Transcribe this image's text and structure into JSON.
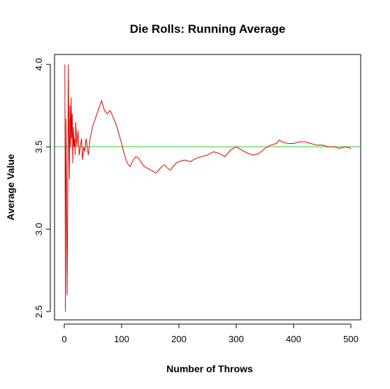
{
  "chart_data": {
    "type": "line",
    "title": "Die Rolls: Running Average",
    "xlabel": "Number of Throws",
    "ylabel": "Average Value",
    "xlim": [
      -17,
      517
    ],
    "ylim": [
      2.45,
      4.06
    ],
    "x_ticks": [
      0,
      100,
      200,
      300,
      400,
      500
    ],
    "x_tick_labels": [
      "0",
      "100",
      "200",
      "300",
      "400",
      "500"
    ],
    "y_ticks": [
      2.5,
      3.0,
      3.5,
      4.0
    ],
    "y_tick_labels": [
      "2.5",
      "3.0",
      "3.5",
      "4.0"
    ],
    "grid": false,
    "colors": {
      "running_average": "#dd0000",
      "reference": "#33cc33"
    },
    "series": [
      {
        "x": [
          1,
          2,
          3,
          4,
          5,
          6,
          7,
          8,
          9,
          10,
          11,
          12,
          13,
          14,
          15,
          16,
          17,
          18,
          19,
          20,
          22,
          24,
          26,
          28,
          30,
          32,
          34,
          36,
          38,
          40,
          42,
          45,
          48,
          50,
          55,
          60,
          65,
          70,
          75,
          80,
          85,
          90,
          95,
          100,
          105,
          110,
          115,
          120,
          125,
          130,
          135,
          140,
          145,
          150,
          155,
          160,
          165,
          170,
          175,
          180,
          185,
          190,
          195,
          200,
          210,
          220,
          230,
          240,
          250,
          260,
          270,
          280,
          290,
          300,
          310,
          320,
          330,
          340,
          350,
          360,
          370,
          375,
          380,
          390,
          400,
          410,
          420,
          430,
          440,
          450,
          460,
          470,
          480,
          490,
          500
        ],
        "values": [
          4.0,
          2.5,
          3.67,
          3.25,
          2.6,
          3.17,
          4.0,
          3.6,
          3.3,
          3.75,
          3.5,
          3.8,
          3.55,
          3.7,
          3.4,
          3.62,
          3.5,
          3.55,
          3.45,
          3.65,
          3.5,
          3.6,
          3.45,
          3.5,
          3.55,
          3.42,
          3.5,
          3.47,
          3.55,
          3.5,
          3.45,
          3.55,
          3.6,
          3.63,
          3.68,
          3.73,
          3.78,
          3.72,
          3.7,
          3.72,
          3.68,
          3.64,
          3.58,
          3.52,
          3.45,
          3.4,
          3.38,
          3.42,
          3.44,
          3.43,
          3.4,
          3.38,
          3.37,
          3.36,
          3.35,
          3.34,
          3.36,
          3.38,
          3.39,
          3.37,
          3.36,
          3.38,
          3.4,
          3.41,
          3.42,
          3.41,
          3.43,
          3.44,
          3.45,
          3.47,
          3.46,
          3.44,
          3.48,
          3.5,
          3.48,
          3.46,
          3.45,
          3.46,
          3.49,
          3.51,
          3.52,
          3.54,
          3.53,
          3.52,
          3.52,
          3.53,
          3.53,
          3.52,
          3.51,
          3.51,
          3.5,
          3.5,
          3.49,
          3.5,
          3.49
        ]
      },
      {
        "x": [
          -17,
          517
        ],
        "values": [
          3.5,
          3.5
        ]
      }
    ]
  }
}
